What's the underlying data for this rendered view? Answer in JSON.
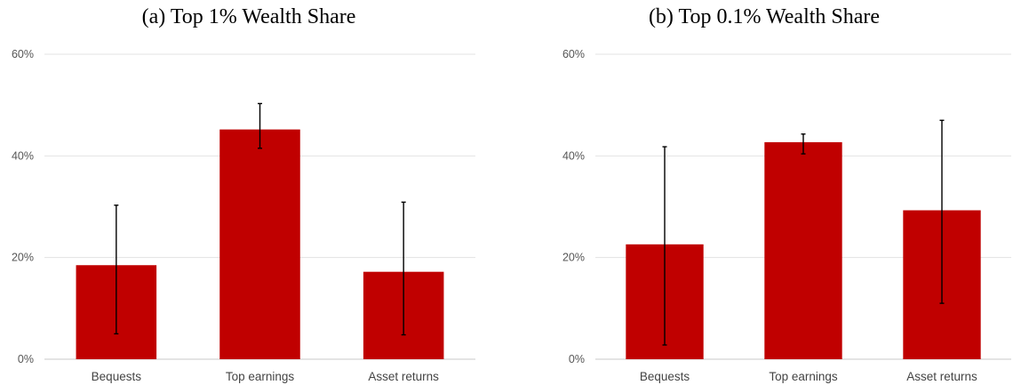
{
  "chart_data": [
    {
      "type": "bar",
      "title": "(a) Top 1% Wealth Share",
      "categories": [
        "Bequests",
        "Top earnings",
        "Asset returns"
      ],
      "values": [
        18.5,
        45.2,
        17.2
      ],
      "error_low": [
        5.0,
        41.5,
        4.8
      ],
      "error_high": [
        30.3,
        50.3,
        30.9
      ],
      "yticks": [
        "0%",
        "20%",
        "40%",
        "60%"
      ],
      "ylim": [
        0,
        60
      ],
      "grid": true,
      "bar_color": "#c00000"
    },
    {
      "type": "bar",
      "title": "(b) Top 0.1% Wealth Share",
      "categories": [
        "Bequests",
        "Top earnings",
        "Asset returns"
      ],
      "values": [
        22.6,
        42.7,
        29.3
      ],
      "error_low": [
        2.8,
        40.4,
        11.0
      ],
      "error_high": [
        41.8,
        44.3,
        47.0
      ],
      "yticks": [
        "0%",
        "20%",
        "40%",
        "60%"
      ],
      "ylim": [
        0,
        60
      ],
      "grid": true,
      "bar_color": "#c00000"
    }
  ]
}
